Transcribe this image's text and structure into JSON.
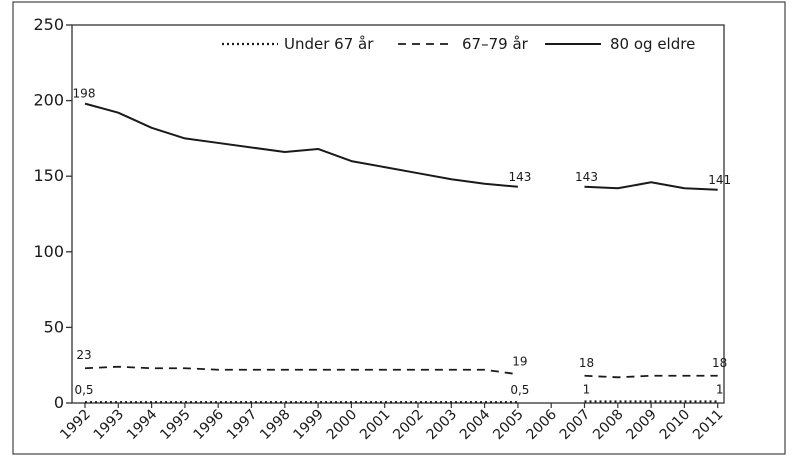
{
  "chart_data": {
    "type": "line",
    "categories": [
      "1992",
      "1993",
      "1994",
      "1995",
      "1996",
      "1997",
      "1998",
      "1999",
      "2000",
      "2001",
      "2002",
      "2003",
      "2004",
      "2005",
      "2006",
      "2007",
      "2008",
      "2009",
      "2010",
      "2011"
    ],
    "ylim": [
      0,
      250
    ],
    "yticks": [
      "0",
      "50",
      "100",
      "150",
      "200",
      "250"
    ],
    "grid": false,
    "legend_position": "top-right",
    "series": [
      {
        "name": "Under 67 år",
        "style": "dotted",
        "values": [
          0.5,
          0.5,
          0.5,
          0.5,
          0.5,
          0.5,
          0.5,
          0.5,
          0.5,
          0.5,
          0.5,
          0.5,
          0.5,
          0.5,
          null,
          1,
          1,
          1,
          1,
          1
        ]
      },
      {
        "name": "67–79 år",
        "style": "dashed",
        "values": [
          23,
          24,
          23,
          23,
          22,
          22,
          22,
          22,
          22,
          22,
          22,
          22,
          22,
          19,
          null,
          18,
          17,
          18,
          18,
          18
        ]
      },
      {
        "name": "80 og eldre",
        "style": "solid",
        "values": [
          198,
          192,
          182,
          175,
          172,
          169,
          166,
          168,
          160,
          156,
          152,
          148,
          145,
          143,
          null,
          143,
          142,
          146,
          142,
          141
        ]
      }
    ],
    "data_labels": [
      {
        "series": "80 og eldre",
        "category": "1992",
        "text": "198"
      },
      {
        "series": "80 og eldre",
        "category": "2005",
        "text": "143"
      },
      {
        "series": "80 og eldre",
        "category": "2007",
        "text": "143"
      },
      {
        "series": "80 og eldre",
        "category": "2011",
        "text": "141"
      },
      {
        "series": "67–79 år",
        "category": "1992",
        "text": "23"
      },
      {
        "series": "67–79 år",
        "category": "2005",
        "text": "19"
      },
      {
        "series": "67–79 år",
        "category": "2007",
        "text": "18"
      },
      {
        "series": "67–79 år",
        "category": "2011",
        "text": "18"
      },
      {
        "series": "Under 67 år",
        "category": "1992",
        "text": "0,5"
      },
      {
        "series": "Under 67 år",
        "category": "2005",
        "text": "0,5"
      },
      {
        "series": "Under 67 år",
        "category": "2007",
        "text": "1"
      },
      {
        "series": "Under 67 år",
        "category": "2011",
        "text": "1"
      }
    ],
    "colors": {
      "line": "#1a1a1a",
      "frame": "#333333",
      "background": "#ffffff"
    }
  }
}
